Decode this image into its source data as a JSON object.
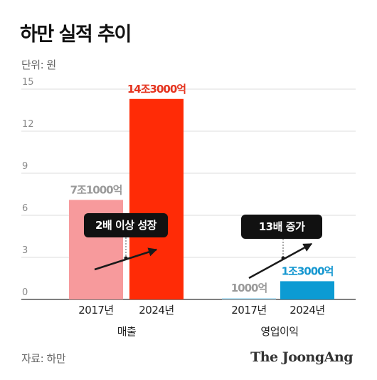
{
  "title": "하만 실적 추이",
  "unit": "단위: 원",
  "source": "자료: 하만",
  "brand": "The JoongAng",
  "chart_data": {
    "type": "bar",
    "yticks": [
      "15",
      "12",
      "9",
      "6",
      "3",
      "0"
    ],
    "ylim": [
      0,
      15
    ],
    "groups": [
      {
        "name": "매출",
        "bars": [
          {
            "year": "2017년",
            "value": 7.1,
            "label": "7조1000억",
            "color": "#f79a9c",
            "label_color": "#9a9a9a"
          },
          {
            "year": "2024년",
            "value": 14.3,
            "label": "14조3000억",
            "color": "#ff2b06",
            "label_color": "#e5341f"
          }
        ],
        "callout": "2배 이상 성장"
      },
      {
        "name": "영업이익",
        "bars": [
          {
            "year": "2017년",
            "value": 0.1,
            "label": "1000억",
            "color": "#b7e0f2",
            "label_color": "#9a9a9a"
          },
          {
            "year": "2024년",
            "value": 1.3,
            "label": "1조3000억",
            "color": "#0c9bd3",
            "label_color": "#1597d0"
          }
        ],
        "callout": "13배 증가"
      }
    ]
  }
}
